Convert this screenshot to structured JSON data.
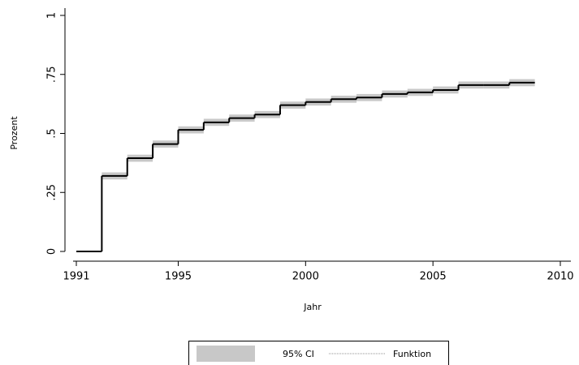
{
  "chart_data": {
    "type": "step",
    "x_label": "Jahr",
    "y_label": "Prozent",
    "x": [
      1991,
      1992,
      1993,
      1994,
      1995,
      1996,
      1997,
      1998,
      1999,
      2000,
      2001,
      2002,
      2003,
      2004,
      2005,
      2006,
      2007,
      2008,
      2009
    ],
    "series": [
      {
        "name": "Funktion",
        "color": "#000000",
        "legend_color": "#909090",
        "values": [
          0,
          0.32,
          0.395,
          0.455,
          0.515,
          0.547,
          0.565,
          0.58,
          0.62,
          0.633,
          0.645,
          0.652,
          0.667,
          0.674,
          0.684,
          0.705,
          0.705,
          0.715,
          0.715
        ]
      }
    ],
    "ci": {
      "name": "95% CI",
      "color": "#c8c8c8",
      "lower": [
        0,
        0.305,
        0.38,
        0.44,
        0.5,
        0.532,
        0.55,
        0.565,
        0.605,
        0.618,
        0.63,
        0.637,
        0.652,
        0.659,
        0.669,
        0.69,
        0.69,
        0.7,
        0.7
      ],
      "upper": [
        0,
        0.335,
        0.41,
        0.47,
        0.53,
        0.562,
        0.58,
        0.595,
        0.635,
        0.648,
        0.66,
        0.667,
        0.682,
        0.689,
        0.699,
        0.72,
        0.72,
        0.73,
        0.73
      ]
    },
    "xlim": [
      1991,
      2010
    ],
    "xticks": [
      1991,
      1995,
      2000,
      2005,
      2010
    ],
    "ylim": [
      0,
      1
    ],
    "yticks": [
      0,
      {
        "value": 0.25,
        "label": ".25"
      },
      {
        "value": 0.5,
        "label": ".5"
      },
      {
        "value": 0.75,
        "label": ".75"
      },
      1
    ],
    "grid": false
  }
}
